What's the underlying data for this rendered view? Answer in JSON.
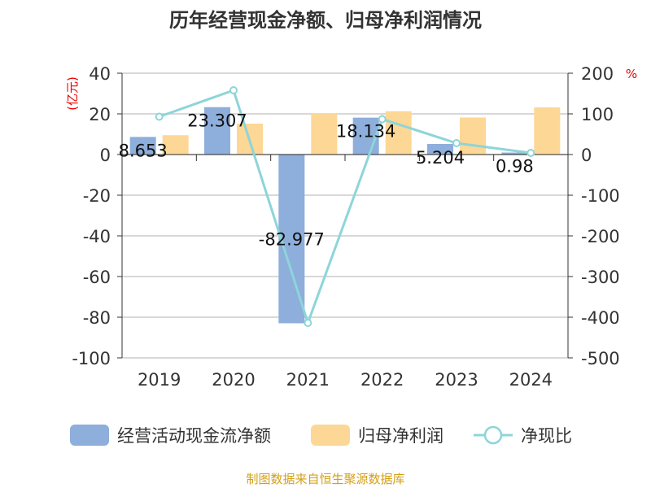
{
  "chart_data": {
    "type": "bar",
    "title": "历年经营现金净额、归母净利润情况",
    "categories": [
      "2019",
      "2020",
      "2021",
      "2022",
      "2023",
      "2024"
    ],
    "left_unit": "(亿元)",
    "right_unit": "%",
    "ylim_left": [
      -100,
      40
    ],
    "ylim_right": [
      -500,
      200
    ],
    "left_ticks": [
      40,
      20,
      0,
      -20,
      -40,
      -60,
      -80,
      -100
    ],
    "right_ticks": [
      200,
      100,
      0,
      -100,
      -200,
      -300,
      -400,
      -500
    ],
    "grid": true,
    "legend_placement": "bottom",
    "series": [
      {
        "name": "经营活动现金流净额",
        "type": "bar",
        "color": "#8eaedb",
        "values": [
          8.653,
          23.307,
          -82.977,
          18.134,
          5.204,
          0.98
        ],
        "labels": [
          "8.653",
          "23.307",
          "-82.977",
          "18.134",
          "5.204",
          "0.98"
        ]
      },
      {
        "name": "归母净利润",
        "type": "bar",
        "color": "#fdd795",
        "values": [
          9.5,
          15.2,
          20.3,
          21.3,
          18.2,
          23.2
        ]
      },
      {
        "name": "净现比",
        "type": "line",
        "axis": "right",
        "color": "#8dd5d9",
        "values": [
          93,
          158,
          -414,
          87,
          28,
          4
        ]
      }
    ]
  },
  "footer": "制图数据来自恒生聚源数据库"
}
